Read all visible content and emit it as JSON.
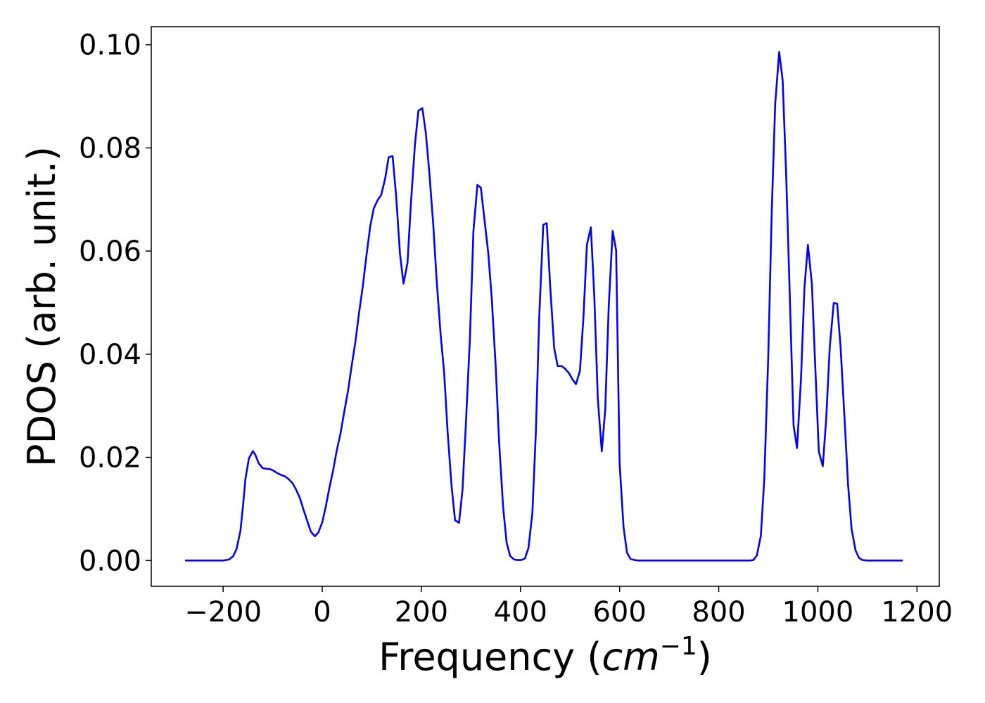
{
  "chart_data": {
    "type": "line",
    "title": "",
    "xlabel": "Frequency (",
    "xlabel_math_base": "cm",
    "xlabel_math_sup": "−1",
    "xlabel_suffix": ")",
    "ylabel": "PDOS (arb. unit.)",
    "xlim": [
      -345,
      1245
    ],
    "ylim": [
      -0.005,
      0.1035
    ],
    "grid": false,
    "legend": "none",
    "line_color": "#0000ff",
    "xticks": [
      -200,
      0,
      200,
      400,
      600,
      800,
      1000,
      1200
    ],
    "xtick_labels": [
      "−200",
      "0",
      "200",
      "400",
      "600",
      "800",
      "1000",
      "1200"
    ],
    "yticks": [
      0.0,
      0.02,
      0.04,
      0.06,
      0.08,
      0.1
    ],
    "ytick_labels": [
      "0.00",
      "0.02",
      "0.04",
      "0.06",
      "0.08",
      "0.10"
    ],
    "series": [
      {
        "x": [
          -275,
          -200,
          -188,
          -180,
          -173,
          -165,
          -160,
          -155,
          -148,
          -140,
          -135,
          -128,
          -120,
          -113,
          -105,
          -98,
          -90,
          -83,
          -75,
          -68,
          -60,
          -53,
          -45,
          -38,
          -30,
          -23,
          -15,
          -8,
          0,
          7,
          14,
          22,
          29,
          37,
          44,
          52,
          59,
          67,
          74,
          82,
          89,
          97,
          104,
          112,
          119,
          127,
          134,
          142,
          149,
          157,
          164,
          172,
          179,
          187,
          194,
          202,
          209,
          216,
          224,
          231,
          239,
          246,
          253,
          261,
          268,
          276,
          283,
          290,
          298,
          305,
          313,
          320,
          327,
          335,
          342,
          350,
          357,
          365,
          372,
          379,
          387,
          394,
          402,
          409,
          416,
          424,
          431,
          438,
          446,
          453,
          460,
          468,
          475,
          483,
          490,
          498,
          505,
          512,
          520,
          527,
          534,
          542,
          549,
          556,
          564,
          571,
          578,
          586,
          593,
          600,
          608,
          615,
          622,
          630,
          637,
          644,
          652,
          700,
          800,
          863,
          870,
          877,
          885,
          892,
          900,
          907,
          914,
          922,
          929,
          936,
          944,
          951,
          958,
          966,
          973,
          980,
          988,
          995,
          1002,
          1010,
          1017,
          1024,
          1032,
          1039,
          1046,
          1054,
          1061,
          1068,
          1076,
          1083,
          1090,
          1100,
          1170
        ],
        "y": [
          0.0,
          0.0,
          0.0002,
          0.0008,
          0.0022,
          0.0058,
          0.0105,
          0.0158,
          0.0198,
          0.0212,
          0.0205,
          0.0188,
          0.0179,
          0.0178,
          0.0177,
          0.0174,
          0.0169,
          0.0166,
          0.0163,
          0.0158,
          0.015,
          0.0138,
          0.0121,
          0.0099,
          0.0076,
          0.0056,
          0.0047,
          0.0054,
          0.0074,
          0.0104,
          0.0139,
          0.0175,
          0.0212,
          0.0247,
          0.0286,
          0.0329,
          0.0375,
          0.0425,
          0.0478,
          0.0533,
          0.059,
          0.0649,
          0.0683,
          0.0699,
          0.0709,
          0.0741,
          0.0782,
          0.0784,
          0.0708,
          0.0593,
          0.0537,
          0.0577,
          0.0694,
          0.0806,
          0.0872,
          0.0877,
          0.0829,
          0.0753,
          0.0651,
          0.0541,
          0.0437,
          0.0364,
          0.0249,
          0.0144,
          0.0078,
          0.0073,
          0.0137,
          0.0268,
          0.0432,
          0.0638,
          0.0728,
          0.0723,
          0.0664,
          0.0596,
          0.0509,
          0.0376,
          0.0227,
          0.0103,
          0.0035,
          0.0009,
          0.0002,
          0.0001,
          0.0001,
          0.0004,
          0.0024,
          0.0092,
          0.0249,
          0.0477,
          0.0651,
          0.0654,
          0.0531,
          0.0412,
          0.0377,
          0.0377,
          0.0372,
          0.0363,
          0.0351,
          0.0342,
          0.0368,
          0.0471,
          0.0612,
          0.0646,
          0.0511,
          0.0314,
          0.0212,
          0.0292,
          0.0491,
          0.0639,
          0.0601,
          0.0188,
          0.0064,
          0.0015,
          0.0003,
          0.0001,
          0.0,
          0.0,
          0.0,
          0.0,
          0.0,
          0.0,
          0.0001,
          0.001,
          0.0048,
          0.0159,
          0.0398,
          0.0677,
          0.0886,
          0.0986,
          0.0931,
          0.0751,
          0.0494,
          0.0262,
          0.0218,
          0.0352,
          0.0529,
          0.0612,
          0.0536,
          0.0371,
          0.0211,
          0.0183,
          0.0277,
          0.0413,
          0.0499,
          0.0498,
          0.0412,
          0.0273,
          0.0147,
          0.0062,
          0.002,
          0.0005,
          0.0001,
          0.0,
          0.0
        ]
      }
    ]
  }
}
